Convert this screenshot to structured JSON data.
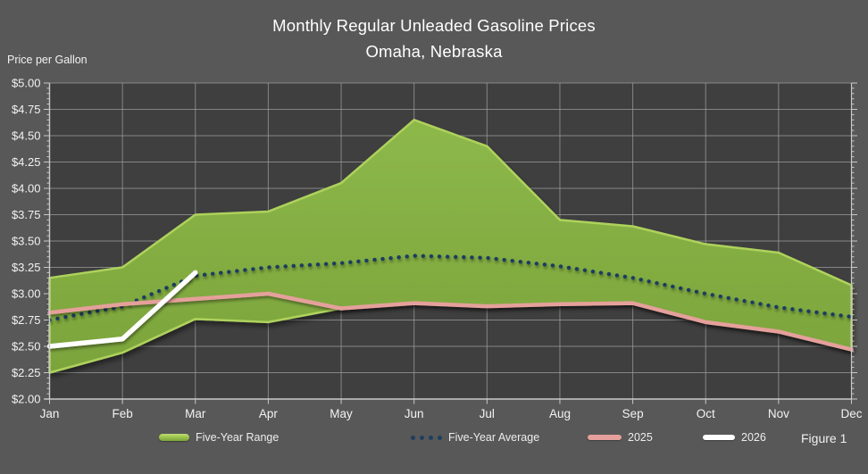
{
  "title": {
    "line1": "Monthly Regular Unleaded Gasoline Prices",
    "line2": "Omaha, Nebraska"
  },
  "figure_caption": "Figure 1",
  "colors": {
    "background": "#585858",
    "plot_background": "#3f3f3f",
    "gridline": "#9d9d9d",
    "axis": "#c9c9c9",
    "text": "#f2f2f2",
    "range_fill": "#7ba43b",
    "range_edge": "#aed25c",
    "average_dots": "#1e3e5f",
    "line_2025": "#e5a09b",
    "line_2026": "#ffffff"
  },
  "chart_data": {
    "type": "area",
    "title": "Monthly Regular Unleaded Gasoline Prices",
    "subtitle": "Omaha, Nebraska",
    "ylabel": "Price per Gallon",
    "xlabel": "",
    "ylim": [
      2.0,
      5.0
    ],
    "y_tick_step": 0.25,
    "y_minor_tick_step": 0.05,
    "grid": true,
    "legend_position": "bottom",
    "categories": [
      "Jan",
      "Feb",
      "Mar",
      "Apr",
      "May",
      "Jun",
      "Jul",
      "Aug",
      "Sep",
      "Oct",
      "Nov",
      "Dec"
    ],
    "y_tick_labels": [
      "$5.00",
      "$4.75",
      "$4.50",
      "$4.25",
      "$4.00",
      "$3.75",
      "$3.50",
      "$3.25",
      "$3.00",
      "$2.75",
      "$2.50",
      "$2.25",
      "$2.00"
    ],
    "series": [
      {
        "name": "Five-Year Range",
        "type": "band",
        "upper": [
          3.15,
          3.25,
          3.75,
          3.78,
          4.05,
          4.65,
          4.4,
          3.7,
          3.64,
          3.47,
          3.39,
          3.08
        ],
        "lower": [
          2.25,
          2.44,
          2.76,
          2.73,
          2.86,
          2.91,
          2.88,
          2.9,
          2.91,
          2.73,
          2.64,
          2.47
        ]
      },
      {
        "name": "Five-Year Average",
        "type": "dotted_line",
        "values": [
          2.75,
          2.88,
          3.17,
          3.25,
          3.29,
          3.36,
          3.34,
          3.26,
          3.15,
          3.0,
          2.87,
          2.78
        ]
      },
      {
        "name": "2025",
        "type": "line",
        "values": [
          2.82,
          2.9,
          2.95,
          3.0,
          2.86,
          2.91,
          2.88,
          2.9,
          2.91,
          2.73,
          2.64,
          2.47
        ]
      },
      {
        "name": "2026",
        "type": "line",
        "values": [
          2.5,
          2.57,
          3.2
        ]
      }
    ]
  }
}
